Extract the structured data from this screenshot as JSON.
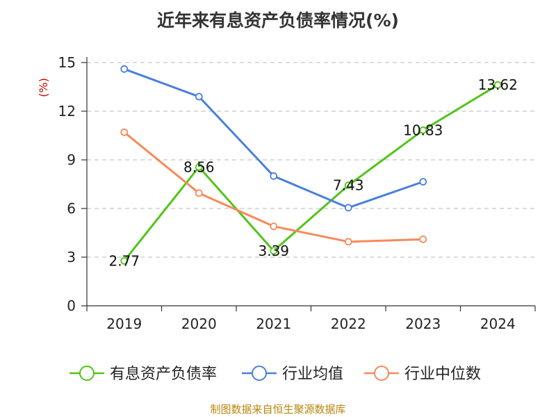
{
  "header": {
    "title": "近年来有息资产负债率情况(%)"
  },
  "footer": {
    "source": "制图数据来自恒生聚源数据库"
  },
  "colors": {
    "unit_label": "#cc0000"
  },
  "chart_data": {
    "type": "line",
    "title": "近年来有息资产负债率情况(%)",
    "ylabel": "(%)",
    "ylim": [
      0,
      15
    ],
    "yticks": [
      0,
      3,
      6,
      9,
      12,
      15
    ],
    "grid": true,
    "legend_position": "bottom",
    "categories": [
      "2019",
      "2020",
      "2021",
      "2022",
      "2023",
      "2024"
    ],
    "series": [
      {
        "name": "有息资产负债率",
        "color": "#52c41a",
        "values": [
          2.77,
          8.56,
          3.39,
          7.43,
          10.83,
          13.62
        ],
        "labels": [
          "2.77",
          "8.56",
          "3.39",
          "7.43",
          "10.83",
          "13.62"
        ]
      },
      {
        "name": "行业均值",
        "color": "#4a7fdc",
        "values": [
          14.6,
          12.9,
          8.0,
          6.05,
          7.65,
          null
        ]
      },
      {
        "name": "行业中位数",
        "color": "#f7895a",
        "values": [
          10.7,
          6.95,
          4.9,
          3.95,
          4.1,
          null
        ]
      }
    ]
  }
}
